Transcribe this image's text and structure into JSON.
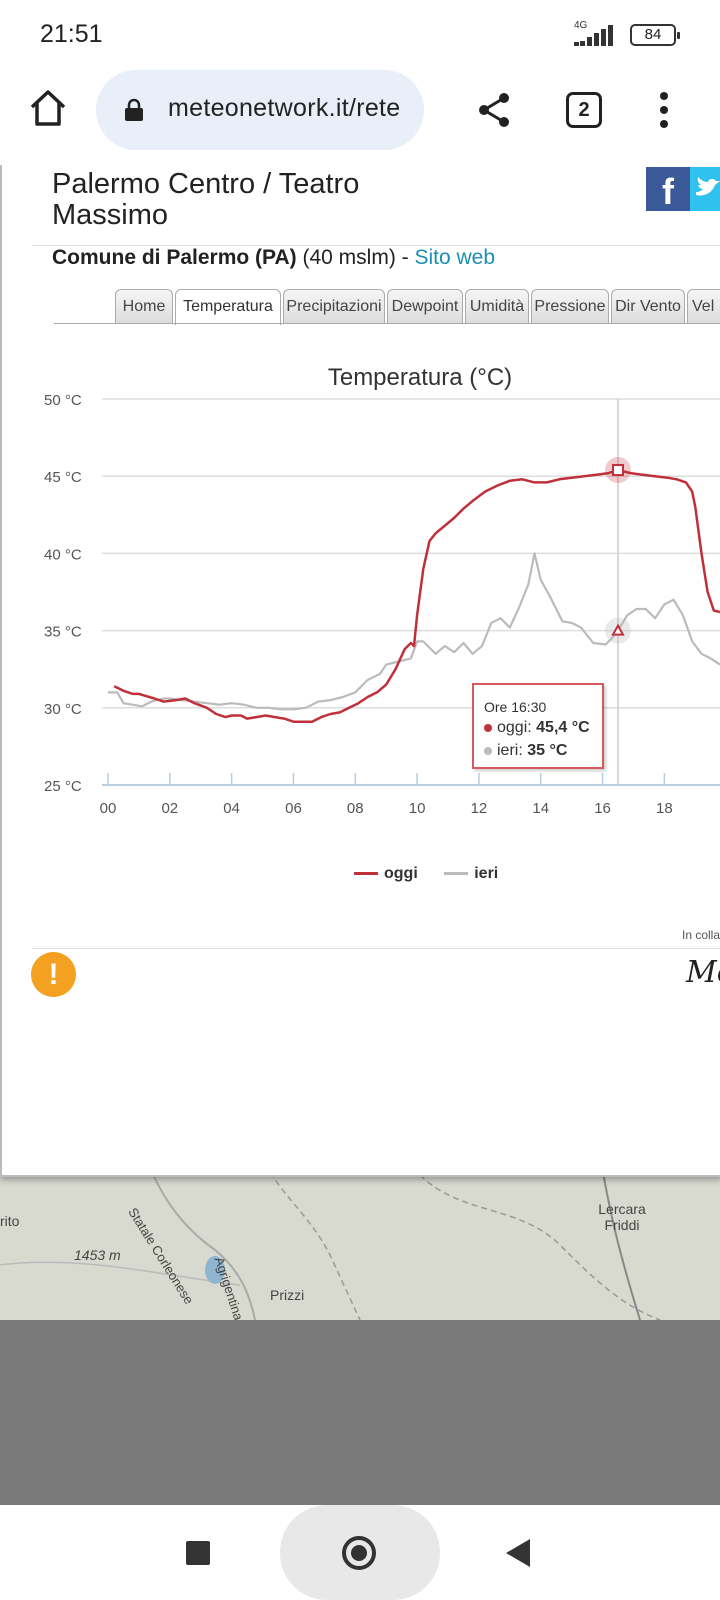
{
  "status_bar": {
    "time": "21:51",
    "network": "4G",
    "battery": "84"
  },
  "browser": {
    "url": "meteonetwork.it/rete",
    "tab_count": "2"
  },
  "station": {
    "title": "Palermo Centro / Teatro Massimo",
    "comune": "Comune di Palermo (PA)",
    "altitude": " (40 mslm) - ",
    "site_link": "Sito web"
  },
  "social": {
    "facebook": "f"
  },
  "tabs": [
    "Home",
    "Temperatura",
    "Precipitazioni",
    "Dewpoint",
    "Umidità",
    "Pressione",
    "Dir Vento",
    "Vel"
  ],
  "active_tab": "Temperatura",
  "chart_data": {
    "type": "line",
    "title": "Temperatura (°C)",
    "x_ticks": [
      "00",
      "02",
      "04",
      "06",
      "08",
      "10",
      "12",
      "14",
      "16",
      "18"
    ],
    "y_ticks": [
      "50 °C",
      "45 °C",
      "40 °C",
      "35 °C",
      "30 °C",
      "25 °C"
    ],
    "ylim": [
      25,
      50
    ],
    "xlim": [
      0,
      19.8
    ],
    "series": [
      {
        "name": "oggi",
        "color": "#c0303a",
        "x": [
          0.2,
          0.5,
          0.8,
          1.0,
          1.5,
          1.8,
          2.2,
          2.5,
          2.8,
          3.2,
          3.5,
          3.8,
          4.0,
          4.3,
          4.5,
          4.8,
          5.1,
          5.4,
          5.7,
          6.0,
          6.3,
          6.6,
          6.9,
          7.2,
          7.5,
          7.8,
          8.1,
          8.4,
          8.7,
          9.0,
          9.3,
          9.6,
          9.8,
          9.9,
          10.0,
          10.2,
          10.4,
          10.6,
          10.9,
          11.2,
          11.5,
          11.8,
          12.2,
          12.6,
          13.0,
          13.4,
          13.8,
          14.2,
          14.6,
          15.0,
          15.4,
          15.8,
          16.2,
          16.5,
          16.9,
          17.3,
          17.7,
          18.1,
          18.4,
          18.7,
          18.9,
          19.0,
          19.2,
          19.4,
          19.6,
          19.8
        ],
        "y": [
          31.4,
          31.1,
          30.9,
          30.9,
          30.6,
          30.4,
          30.5,
          30.6,
          30.3,
          30.0,
          29.6,
          29.4,
          29.5,
          29.5,
          29.3,
          29.4,
          29.5,
          29.4,
          29.3,
          29.1,
          29.1,
          29.1,
          29.4,
          29.6,
          29.7,
          30.0,
          30.3,
          30.7,
          31.0,
          31.5,
          32.5,
          33.8,
          34.2,
          34.0,
          36.0,
          39.0,
          40.8,
          41.3,
          41.8,
          42.3,
          42.9,
          43.4,
          44.0,
          44.4,
          44.7,
          44.8,
          44.6,
          44.6,
          44.8,
          44.9,
          45.0,
          45.1,
          45.2,
          45.4,
          45.2,
          45.1,
          45.0,
          44.9,
          44.8,
          44.6,
          44.0,
          43.0,
          40.0,
          37.5,
          36.3,
          36.2
        ]
      },
      {
        "name": "ieri",
        "color": "#bbbbbb",
        "x": [
          0.0,
          0.3,
          0.5,
          0.8,
          1.1,
          1.4,
          1.8,
          2.0,
          2.4,
          2.8,
          3.2,
          3.6,
          4.0,
          4.4,
          4.8,
          5.2,
          5.6,
          6.0,
          6.4,
          6.8,
          7.2,
          7.6,
          8.0,
          8.4,
          8.8,
          9.0,
          9.4,
          9.8,
          10.0,
          10.2,
          10.6,
          10.9,
          11.2,
          11.5,
          11.8,
          12.1,
          12.4,
          12.7,
          13.0,
          13.3,
          13.6,
          13.8,
          14.0,
          14.3,
          14.7,
          15.0,
          15.3,
          15.7,
          16.1,
          16.3,
          16.5,
          16.8,
          17.1,
          17.4,
          17.7,
          18.0,
          18.3,
          18.6,
          18.9,
          19.2,
          19.5,
          19.8
        ],
        "y": [
          31.0,
          31.0,
          30.3,
          30.2,
          30.1,
          30.4,
          30.6,
          30.6,
          30.5,
          30.4,
          30.3,
          30.2,
          30.3,
          30.2,
          30.0,
          30.0,
          29.9,
          29.9,
          30.0,
          30.4,
          30.5,
          30.7,
          31.0,
          31.8,
          32.2,
          32.8,
          33.0,
          33.2,
          34.3,
          34.3,
          33.5,
          34.0,
          33.6,
          34.2,
          33.5,
          34.0,
          35.5,
          35.8,
          35.2,
          36.5,
          38.0,
          40.0,
          38.3,
          37.2,
          35.6,
          35.5,
          35.2,
          34.2,
          34.1,
          34.5,
          35.0,
          36.0,
          36.4,
          36.4,
          35.8,
          36.7,
          37.0,
          36.0,
          34.3,
          33.5,
          33.2,
          32.8
        ]
      }
    ],
    "hover": {
      "x": 16.5,
      "time_label": "Ore 16:30",
      "oggi": "45,4 °C",
      "ieri": "35 °C",
      "oggi_y": 45.4,
      "ieri_y": 35
    }
  },
  "collab_text": "In collaborazione con",
  "logo_text": "Me",
  "map_labels": [
    "rito",
    "1453 m",
    "Statale Corleonese",
    "Agrigentina",
    "Prizzi",
    "Lercara Friddi"
  ]
}
